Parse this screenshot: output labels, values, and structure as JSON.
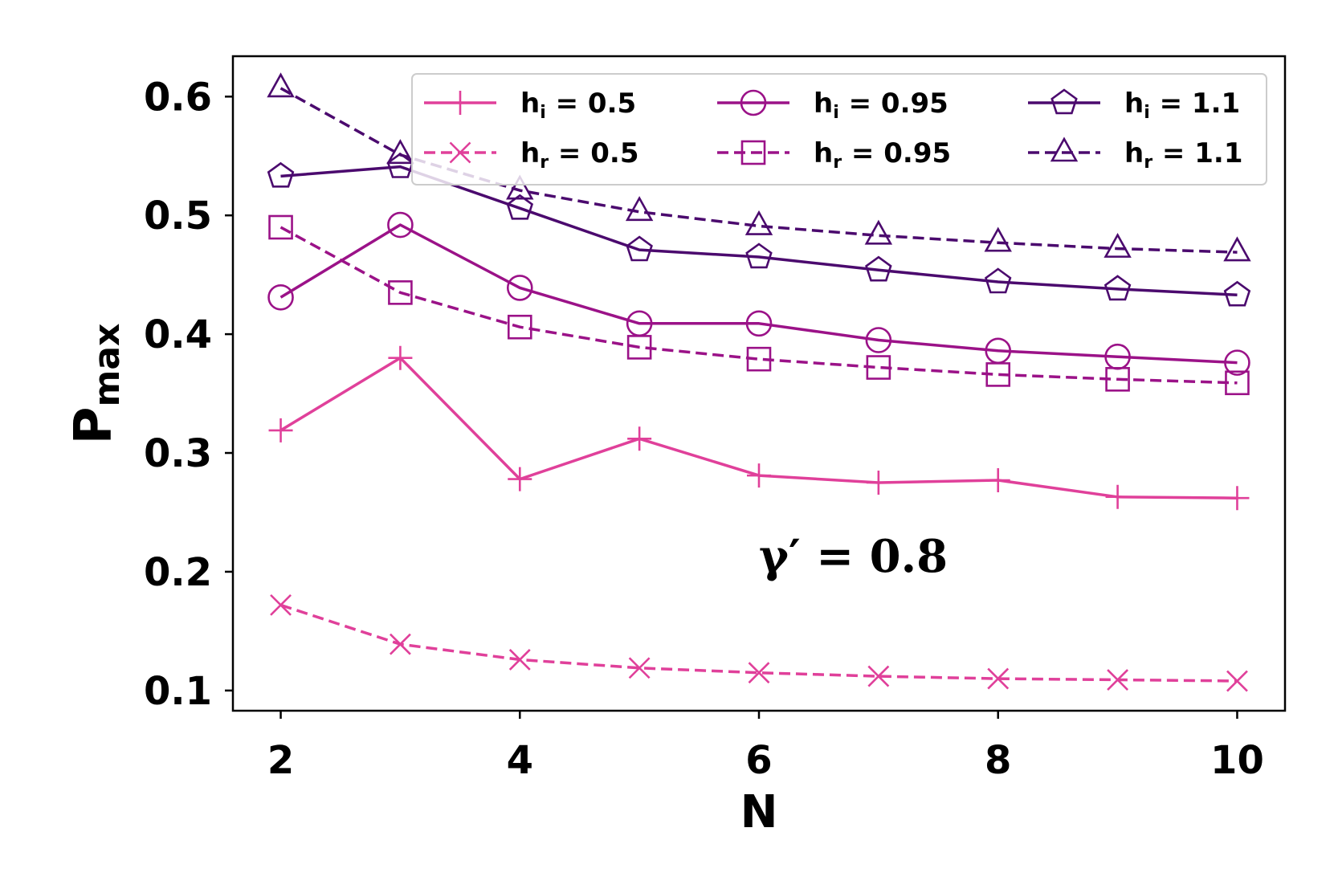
{
  "chart_data": {
    "type": "line",
    "title": "",
    "xlabel": "N",
    "ylabel_main": "P",
    "ylabel_sub": "max",
    "xlim": [
      1.6,
      10.4
    ],
    "ylim": [
      0.083,
      0.634
    ],
    "xticks": [
      2,
      4,
      6,
      8,
      10
    ],
    "xtick_labels": [
      "2",
      "4",
      "6",
      "8",
      "10"
    ],
    "yticks": [
      0.1,
      0.2,
      0.3,
      0.4,
      0.5,
      0.6
    ],
    "ytick_labels": [
      "0.1",
      "0.2",
      "0.3",
      "0.4",
      "0.5",
      "0.6"
    ],
    "grid": false,
    "legend_position": "top-right",
    "annotation": "γ′ = 0.8",
    "x": [
      2,
      3,
      4,
      5,
      6,
      7,
      8,
      9,
      10
    ],
    "series": [
      {
        "name": "h_i = 0.5",
        "label_main": "h",
        "label_sub": "i",
        "label_rest": " = 0.5",
        "color": "#e0409a",
        "dash": "solid",
        "marker": "plus",
        "values": [
          0.319,
          0.38,
          0.278,
          0.312,
          0.281,
          0.275,
          0.277,
          0.263,
          0.262
        ]
      },
      {
        "name": "h_r = 0.5",
        "label_main": "h",
        "label_sub": "r",
        "label_rest": " = 0.5",
        "color": "#e0409a",
        "dash": "dashed",
        "marker": "x",
        "values": [
          0.172,
          0.139,
          0.126,
          0.119,
          0.115,
          0.112,
          0.11,
          0.109,
          0.108
        ]
      },
      {
        "name": "h_i = 0.95",
        "label_main": "h",
        "label_sub": "i",
        "label_rest": " = 0.95",
        "color": "#9b1288",
        "dash": "solid",
        "marker": "circle",
        "values": [
          0.431,
          0.492,
          0.439,
          0.409,
          0.409,
          0.395,
          0.386,
          0.381,
          0.376
        ]
      },
      {
        "name": "h_r = 0.95",
        "label_main": "h",
        "label_sub": "r",
        "label_rest": " = 0.95",
        "color": "#9b1288",
        "dash": "dashed",
        "marker": "square",
        "values": [
          0.49,
          0.435,
          0.406,
          0.389,
          0.379,
          0.372,
          0.366,
          0.362,
          0.359
        ]
      },
      {
        "name": "h_i = 1.1",
        "label_main": "h",
        "label_sub": "i",
        "label_rest": " = 1.1",
        "color": "#4b0a6e",
        "dash": "solid",
        "marker": "pentagon",
        "values": [
          0.533,
          0.541,
          0.506,
          0.471,
          0.465,
          0.454,
          0.444,
          0.438,
          0.433
        ]
      },
      {
        "name": "h_r = 1.1",
        "label_main": "h",
        "label_sub": "r",
        "label_rest": " = 1.1",
        "color": "#4b0a6e",
        "dash": "dashed",
        "marker": "triangle",
        "values": [
          0.607,
          0.551,
          0.521,
          0.503,
          0.491,
          0.483,
          0.477,
          0.472,
          0.469
        ]
      }
    ]
  }
}
